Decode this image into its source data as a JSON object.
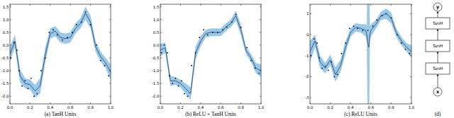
{
  "chart_data": [
    {
      "type": "line",
      "title": "(a) TanH Units",
      "x": [
        0,
        0.05,
        0.1,
        0.15,
        0.2,
        0.25,
        0.3,
        0.35,
        0.4,
        0.45,
        0.5,
        0.55,
        0.6,
        0.65,
        0.7,
        0.75,
        0.8,
        0.85,
        0.9,
        0.95,
        1
      ],
      "series": [
        {
          "type": "line",
          "color": "#2e4f73",
          "values": [
            -0.35,
            0.15,
            -1.2,
            -1.5,
            -1.55,
            -1.8,
            -1.6,
            -0.4,
            0.45,
            0.55,
            0.3,
            0.25,
            0.3,
            0.65,
            0.85,
            1.25,
            0.9,
            -0.05,
            -0.45,
            -0.7,
            -1.05
          ],
          "std": [
            0.3,
            0.25,
            0.25,
            0.2,
            0.2,
            0.25,
            0.3,
            0.3,
            0.2,
            0.2,
            0.2,
            0.2,
            0.2,
            0.2,
            0.2,
            0.25,
            0.25,
            0.2,
            0.2,
            0.2,
            0.3
          ]
        },
        {
          "type": "scatter",
          "color": "#000000",
          "marker": "dot",
          "x": [
            0.01,
            0.04,
            0.07,
            0.09,
            0.12,
            0.15,
            0.18,
            0.21,
            0.24,
            0.27,
            0.31,
            0.35,
            0.39,
            0.43,
            0.47,
            0.52,
            0.57,
            0.62,
            0.66,
            0.71,
            0.75,
            0.8,
            0.86,
            0.9,
            0.94,
            0.98
          ],
          "values": [
            -0.5,
            0.1,
            -0.2,
            -1.0,
            -1.6,
            -1.4,
            -1.7,
            -1.3,
            -2.0,
            -1.9,
            -1.0,
            -0.5,
            0.5,
            0.6,
            0.4,
            0.2,
            0.3,
            0.5,
            0.8,
            0.9,
            1.3,
            0.8,
            0.0,
            -0.6,
            -0.8,
            -1.2
          ]
        }
      ],
      "xlim": [
        0,
        1
      ],
      "xticks": [
        {
          "value": 0,
          "label": "0.0"
        },
        {
          "value": 0.2,
          "label": "0.2"
        },
        {
          "value": 0.4,
          "label": "0.4"
        },
        {
          "value": 0.6,
          "label": "0.6"
        },
        {
          "value": 0.8,
          "label": "0.8"
        },
        {
          "value": 1,
          "label": "1.0"
        }
      ],
      "ylim": [
        -2.3,
        1.6
      ],
      "yticks": [
        {
          "value": -2,
          "label": "-2.0"
        },
        {
          "value": -1.5,
          "label": "-1.5"
        },
        {
          "value": -1,
          "label": "-1.0"
        },
        {
          "value": -0.5,
          "label": "-0.5"
        },
        {
          "value": 0,
          "label": "0.0"
        },
        {
          "value": 0.5,
          "label": "0.5"
        },
        {
          "value": 1,
          "label": "1.0"
        },
        {
          "value": 1.5,
          "label": "1.5"
        }
      ],
      "grid": false
    },
    {
      "type": "line",
      "title": "(b) ReLU + TanH Units",
      "x": [
        0,
        0.05,
        0.1,
        0.15,
        0.2,
        0.25,
        0.3,
        0.35,
        0.4,
        0.45,
        0.5,
        0.55,
        0.6,
        0.65,
        0.7,
        0.75,
        0.8,
        0.85,
        0.9,
        0.95,
        1
      ],
      "series": [
        {
          "type": "line",
          "color": "#2e4f73",
          "values": [
            -0.2,
            -0.1,
            -1.4,
            -1.4,
            -1.5,
            -1.7,
            -1.9,
            -0.3,
            0.15,
            0.45,
            0.5,
            0.5,
            0.5,
            0.7,
            0.85,
            1.15,
            0.6,
            -0.2,
            -0.5,
            -0.9,
            -1.0
          ],
          "std": [
            0.25,
            0.2,
            0.2,
            0.15,
            0.15,
            0.2,
            0.25,
            0.25,
            0.2,
            0.15,
            0.15,
            0.15,
            0.15,
            0.15,
            0.15,
            0.2,
            0.2,
            0.15,
            0.15,
            0.2,
            0.25
          ]
        },
        {
          "type": "scatter",
          "color": "#000000",
          "marker": "dot",
          "x": [
            0.01,
            0.04,
            0.07,
            0.09,
            0.12,
            0.15,
            0.18,
            0.21,
            0.24,
            0.27,
            0.31,
            0.35,
            0.39,
            0.43,
            0.47,
            0.52,
            0.57,
            0.62,
            0.66,
            0.71,
            0.75,
            0.8,
            0.86,
            0.9,
            0.94,
            0.98
          ],
          "values": [
            -0.3,
            0.0,
            -0.3,
            -1.2,
            -1.5,
            -1.3,
            -1.6,
            -1.4,
            -1.9,
            -2.0,
            -0.8,
            -0.3,
            0.3,
            0.6,
            0.4,
            0.5,
            0.5,
            0.6,
            0.7,
            0.9,
            1.2,
            0.7,
            -0.1,
            -0.6,
            -0.9,
            -1.1
          ]
        }
      ],
      "xlim": [
        0,
        1
      ],
      "xticks": [
        {
          "value": 0,
          "label": "0.0"
        },
        {
          "value": 0.2,
          "label": "0.2"
        },
        {
          "value": 0.4,
          "label": "0.4"
        },
        {
          "value": 0.6,
          "label": "0.6"
        },
        {
          "value": 0.8,
          "label": "0.8"
        },
        {
          "value": 1,
          "label": "1.0"
        }
      ],
      "ylim": [
        -2.3,
        1.6
      ],
      "yticks": [
        {
          "value": -2,
          "label": "-2.0"
        },
        {
          "value": -1.5,
          "label": "-1.5"
        },
        {
          "value": -1,
          "label": "-1.0"
        },
        {
          "value": -0.5,
          "label": "-0.5"
        },
        {
          "value": 0,
          "label": "0.0"
        },
        {
          "value": 0.5,
          "label": "0.5"
        },
        {
          "value": 1,
          "label": "1.0"
        },
        {
          "value": 1.5,
          "label": "1.5"
        }
      ],
      "grid": false
    },
    {
      "type": "line",
      "title": "(c) ReLU Units",
      "x": [
        0,
        0.05,
        0.1,
        0.15,
        0.2,
        0.25,
        0.3,
        0.35,
        0.4,
        0.45,
        0.5,
        0.55,
        0.56,
        0.57,
        0.58,
        0.59,
        0.6,
        0.65,
        0.7,
        0.75,
        0.8,
        0.85,
        0.9,
        0.95,
        1
      ],
      "series": [
        {
          "type": "line",
          "color": "#2e4f73",
          "values": [
            -0.8,
            -0.3,
            -1.3,
            -1.6,
            -1.2,
            -1.9,
            -1.5,
            -0.6,
            0.1,
            0.35,
            0.3,
            0.2,
            0.0,
            -0.4,
            -0.6,
            0.0,
            0.2,
            0.5,
            0.9,
            1.0,
            0.8,
            0.1,
            -0.3,
            -0.6,
            -0.8
          ],
          "std": [
            0.5,
            0.3,
            0.3,
            0.25,
            0.25,
            0.35,
            0.3,
            0.3,
            0.2,
            0.2,
            0.2,
            0.3,
            0.4,
            5,
            5,
            0.4,
            0.3,
            0.2,
            0.2,
            0.25,
            0.25,
            0.2,
            0.2,
            0.2,
            0.3
          ]
        },
        {
          "type": "scatter",
          "color": "#000000",
          "marker": "dot",
          "x": [
            0.01,
            0.04,
            0.07,
            0.09,
            0.12,
            0.15,
            0.18,
            0.21,
            0.24,
            0.27,
            0.31,
            0.35,
            0.39,
            0.43,
            0.47,
            0.52,
            0.57,
            0.62,
            0.66,
            0.71,
            0.75,
            0.8,
            0.86,
            0.9,
            0.94,
            0.98
          ],
          "values": [
            -1.0,
            -0.2,
            -0.4,
            -1.1,
            -1.6,
            -1.5,
            -1.7,
            -1.3,
            -2.0,
            -1.9,
            -0.9,
            -0.4,
            0.3,
            0.4,
            0.3,
            0.2,
            0.2,
            0.4,
            0.7,
            0.9,
            1.0,
            0.8,
            0.0,
            -0.4,
            -0.7,
            -0.9
          ]
        }
      ],
      "xlim": [
        0,
        1
      ],
      "xticks": [
        {
          "value": 0,
          "label": "0.0"
        },
        {
          "value": 0.2,
          "label": "0.2"
        },
        {
          "value": 0.4,
          "label": "0.4"
        },
        {
          "value": 0.6,
          "label": "0.6"
        },
        {
          "value": 0.8,
          "label": "0.8"
        },
        {
          "value": 1,
          "label": "1.0"
        }
      ],
      "ylim": [
        -3.3,
        1.45
      ],
      "yticks": [
        -3,
        -2,
        -1,
        0,
        1
      ],
      "grid": false
    }
  ],
  "diagram": {
    "caption": "(d)",
    "nodes": [
      {
        "label": "y",
        "shape": "circle"
      },
      {
        "label": "TanH",
        "shape": "box"
      },
      {
        "label": "TanH",
        "shape": "box"
      },
      {
        "label": "TanH",
        "shape": "box"
      },
      {
        "label": "x",
        "shape": "circle"
      }
    ]
  }
}
